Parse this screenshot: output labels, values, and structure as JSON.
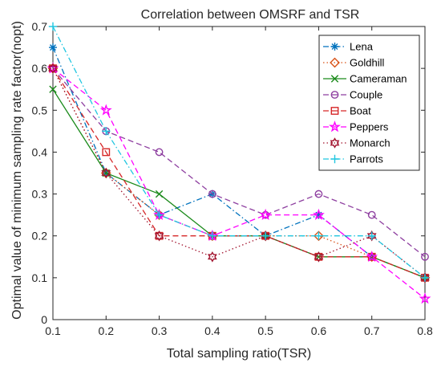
{
  "chart_data": {
    "type": "line",
    "title": "Correlation between OMSRF and TSR",
    "xlabel": "Total sampling ratio(TSR)",
    "ylabel": "Optimal value of minimum sampling rate factor(nopt)",
    "x": [
      0.1,
      0.2,
      0.3,
      0.4,
      0.5,
      0.6,
      0.7,
      0.8
    ],
    "xlim": [
      0.1,
      0.8
    ],
    "ylim": [
      0,
      0.7
    ],
    "x_ticks": [
      "0.1",
      "0.2",
      "0.3",
      "0.4",
      "0.5",
      "0.6",
      "0.7",
      "0.8"
    ],
    "y_ticks": [
      "0",
      "0.1",
      "0.2",
      "0.3",
      "0.4",
      "0.5",
      "0.6",
      "0.7"
    ],
    "grid": false,
    "legend_position": "top-right",
    "series": [
      {
        "name": "Lena",
        "color": "#0072BD",
        "dash": "dashdot",
        "marker": "asterisk",
        "values": [
          0.65,
          0.35,
          0.25,
          0.3,
          0.2,
          0.25,
          0.15,
          0.1
        ]
      },
      {
        "name": "Goldhill",
        "color": "#D95319",
        "dash": "dotted",
        "marker": "diamond",
        "values": [
          0.6,
          0.35,
          0.25,
          0.2,
          0.2,
          0.2,
          0.15,
          0.1
        ]
      },
      {
        "name": "Cameraman",
        "color": "#1A8A1A",
        "dash": "solid",
        "marker": "x",
        "values": [
          0.55,
          0.35,
          0.3,
          0.2,
          0.2,
          0.15,
          0.15,
          0.1
        ]
      },
      {
        "name": "Couple",
        "color": "#8E3FA0",
        "dash": "dashed",
        "marker": "circle",
        "values": [
          0.6,
          0.45,
          0.4,
          0.3,
          0.25,
          0.3,
          0.25,
          0.15
        ]
      },
      {
        "name": "Boat",
        "color": "#D62728",
        "dash": "dashed",
        "marker": "square",
        "values": [
          0.6,
          0.4,
          0.2,
          0.2,
          0.2,
          0.15,
          0.15,
          0.1
        ]
      },
      {
        "name": "Peppers",
        "color": "#FF00FF",
        "dash": "dashed",
        "marker": "pentagram",
        "values": [
          0.6,
          0.5,
          0.25,
          0.2,
          0.25,
          0.25,
          0.15,
          0.05
        ]
      },
      {
        "name": "Monarch",
        "color": "#A2142F",
        "dash": "dotted",
        "marker": "hexagram",
        "values": [
          0.6,
          0.35,
          0.2,
          0.15,
          0.2,
          0.15,
          0.2,
          0.1
        ]
      },
      {
        "name": "Parrots",
        "color": "#20C6E0",
        "dash": "dashdot",
        "marker": "plus",
        "values": [
          0.7,
          0.45,
          0.25,
          0.2,
          0.2,
          0.2,
          0.2,
          0.1
        ]
      }
    ]
  }
}
